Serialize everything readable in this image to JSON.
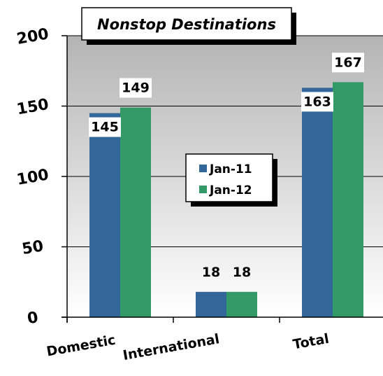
{
  "chart_data": {
    "type": "bar",
    "title": "Nonstop Destinations",
    "categories": [
      "Domestic",
      "International",
      "Total"
    ],
    "series": [
      {
        "name": "Jan-11",
        "values": [
          145,
          18,
          163
        ]
      },
      {
        "name": "Jan-12",
        "values": [
          149,
          18,
          167
        ]
      }
    ],
    "ylim": [
      0,
      200
    ],
    "yticks": [
      "0",
      "50",
      "100",
      "150",
      "200"
    ],
    "grid": true,
    "legend_position": "center",
    "colors": {
      "Jan-11": "#336699",
      "Jan-12": "#339966",
      "plot_top": "#b4b4b4",
      "plot_bottom": "#ffffff"
    }
  }
}
